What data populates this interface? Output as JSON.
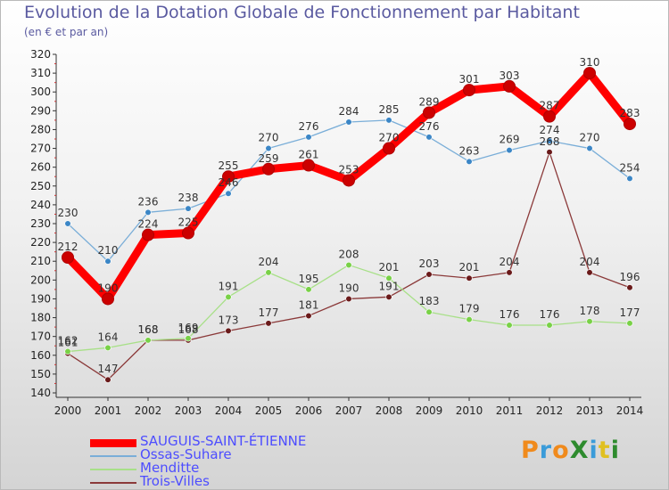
{
  "title": "Evolution de la Dotation Globale de Fonctionnement par Habitant",
  "subtitle": "(en € et par an)",
  "logo": {
    "text": "ProXiti",
    "colors": [
      "#f08a1c",
      "#3a9bd9",
      "#f08a1c",
      "#2e8b2e",
      "#3a9bd9",
      "#e0c020",
      "#2e8b2e"
    ]
  },
  "chart_data": {
    "type": "line",
    "title": "Evolution de la Dotation Globale de Fonctionnement par Habitant",
    "subtitle": "(en € et par an)",
    "categories": [
      "2000",
      "2001",
      "2002",
      "2003",
      "2004",
      "2005",
      "2006",
      "2007",
      "2008",
      "2009",
      "2010",
      "2011",
      "2012",
      "2013",
      "2014"
    ],
    "ylim": [
      140,
      320
    ],
    "yticks": [
      140,
      150,
      160,
      170,
      180,
      190,
      200,
      210,
      220,
      230,
      240,
      250,
      260,
      270,
      280,
      290,
      300,
      310,
      320
    ],
    "grid": false,
    "legend": "bottom-left",
    "series": [
      {
        "name": "SAUGUIS-SAINT-ÉTIENNE",
        "color": "#ff0000",
        "marker": "#cc0000",
        "values": [
          212,
          190,
          224,
          225,
          255,
          259,
          261,
          253,
          270,
          289,
          301,
          303,
          287,
          310,
          283
        ]
      },
      {
        "name": "Ossas-Suhare",
        "color": "#7aaed8",
        "marker": "#3b86c6",
        "values": [
          230,
          210,
          236,
          238,
          246,
          270,
          276,
          284,
          285,
          276,
          263,
          269,
          274,
          270,
          254
        ]
      },
      {
        "name": "Menditte",
        "color": "#a8e088",
        "marker": "#79d147",
        "values": [
          162,
          164,
          168,
          169,
          191,
          204,
          195,
          208,
          201,
          183,
          179,
          176,
          176,
          178,
          177
        ]
      },
      {
        "name": "Trois-Villes",
        "color": "#8b3a3a",
        "marker": "#6a1a1a",
        "values": [
          161,
          147,
          168,
          168,
          173,
          177,
          181,
          190,
          191,
          203,
          201,
          204,
          268,
          204,
          196
        ]
      }
    ]
  }
}
